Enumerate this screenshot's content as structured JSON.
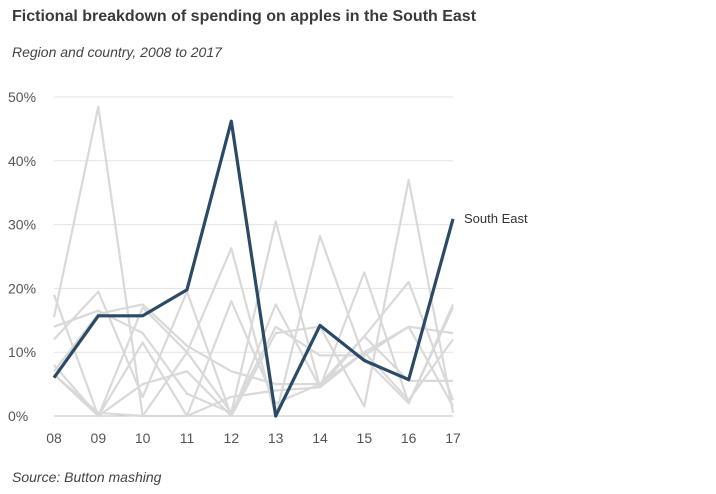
{
  "chart_data": {
    "type": "line",
    "title": "Fictional breakdown of spending on apples in the South East",
    "subtitle": "Region and country, 2008 to 2017",
    "source": "Source: Button mashing",
    "xlabel": "",
    "ylabel": "",
    "x": [
      "08",
      "09",
      "10",
      "11",
      "12",
      "13",
      "14",
      "15",
      "16",
      "17"
    ],
    "ylim": [
      0,
      50
    ],
    "yticks": [
      0,
      10,
      20,
      30,
      40,
      50
    ],
    "ytick_labels": [
      "0%",
      "10%",
      "20%",
      "30%",
      "40%",
      "50%"
    ],
    "grid": "horizontal",
    "highlight": {
      "name": "South East",
      "color": "#2b4a66",
      "values": [
        6,
        15.7,
        15.7,
        19.8,
        46.2,
        0,
        14.2,
        8.7,
        5.7,
        30.9
      ]
    },
    "background_color": "#d9d9d9",
    "background_series": [
      [
        19,
        0,
        17,
        10,
        0.5,
        14,
        9.5,
        9.5,
        14,
        1.5
      ],
      [
        15.5,
        48.5,
        0,
        10,
        26.3,
        0,
        28.2,
        9,
        2,
        17.5
      ],
      [
        14,
        16.5,
        13,
        3.5,
        0.5,
        30.5,
        4.5,
        22.5,
        2,
        17
      ],
      [
        12,
        19.5,
        3,
        19.5,
        0,
        13,
        14,
        1.5,
        37,
        0.5
      ],
      [
        8,
        0,
        11.5,
        0,
        18,
        2,
        5,
        12.5,
        5.5,
        5.5
      ],
      [
        6.5,
        0,
        5,
        7,
        0,
        17.5,
        4.5,
        12.5,
        21,
        2.5
      ],
      [
        7,
        16,
        17.5,
        11,
        7,
        5,
        5,
        10,
        2.5,
        12
      ],
      [
        6.5,
        0.5,
        0,
        0,
        3,
        4,
        4.5,
        10,
        14,
        13
      ]
    ]
  }
}
